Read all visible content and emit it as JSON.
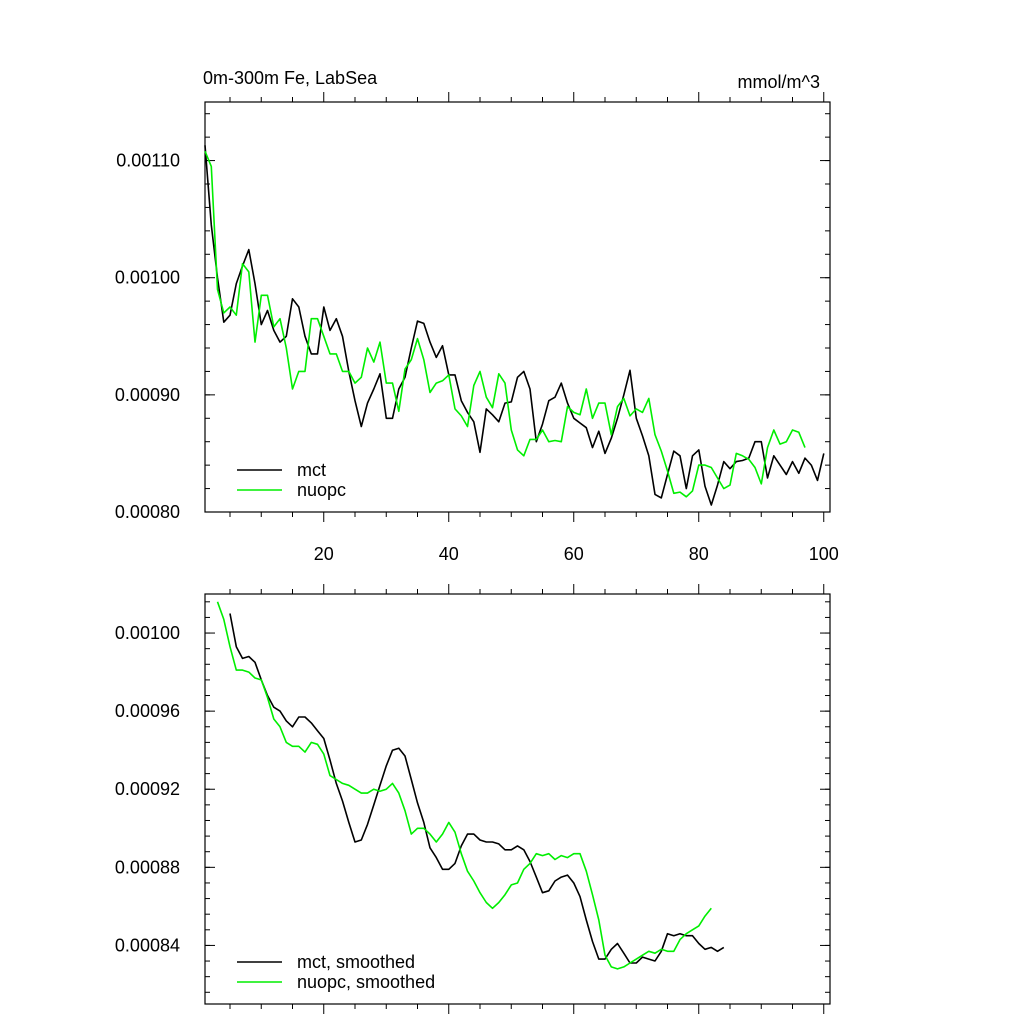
{
  "chart_data": [
    {
      "type": "line",
      "title": "0m-300m Fe, LabSea",
      "units": "mmol/m^3",
      "xlim": [
        1,
        101
      ],
      "ylim": [
        0.0008,
        0.00115
      ],
      "yticks": [
        0.0008,
        0.0009,
        0.001,
        0.0011
      ],
      "ytick_labels": [
        "0.00080",
        "0.00090",
        "0.00100",
        "0.00110"
      ],
      "xticks": [
        20,
        40,
        60,
        80,
        100
      ],
      "xtick_labels": [
        "20",
        "40",
        "60",
        "80",
        "100"
      ],
      "legend_position": "bottom-left",
      "series": [
        {
          "name": "mct",
          "color": "#000000",
          "values": [
            0.001113,
            0.001045,
            0.001,
            0.000962,
            0.000968,
            0.000995,
            0.00101,
            0.001024,
            0.000995,
            0.00096,
            0.000972,
            0.000955,
            0.000945,
            0.00095,
            0.000982,
            0.000975,
            0.00095,
            0.000935,
            0.000935,
            0.000975,
            0.000955,
            0.000965,
            0.00095,
            0.00092,
            0.000895,
            0.000873,
            0.000893,
            0.000905,
            0.000918,
            0.00088,
            0.00088,
            0.000905,
            0.000915,
            0.00094,
            0.000963,
            0.000961,
            0.000945,
            0.000932,
            0.000942,
            0.000917,
            0.000917,
            0.000895,
            0.000885,
            0.000877,
            0.000851,
            0.000888,
            0.000883,
            0.000877,
            0.000893,
            0.000894,
            0.000915,
            0.00092,
            0.000905,
            0.00086,
            0.000875,
            0.000895,
            0.000898,
            0.00091,
            0.000893,
            0.00088,
            0.000876,
            0.000872,
            0.000855,
            0.000869,
            0.00085,
            0.000863,
            0.00088,
            0.0009,
            0.000921,
            0.00088,
            0.000865,
            0.000848,
            0.000815,
            0.000812,
            0.000832,
            0.000852,
            0.000848,
            0.00082,
            0.000848,
            0.000853,
            0.000822,
            0.000806,
            0.000823,
            0.000843,
            0.000837,
            0.000843,
            0.000844,
            0.000846,
            0.00086,
            0.00086,
            0.000829,
            0.000848,
            0.00084,
            0.000832,
            0.000843,
            0.000833,
            0.000846,
            0.00084,
            0.000827,
            0.00085
          ]
        },
        {
          "name": "nuopc",
          "color": "#00ee00",
          "values": [
            0.001108,
            0.001095,
            0.00099,
            0.00097,
            0.000975,
            0.000968,
            0.001012,
            0.001005,
            0.000945,
            0.000985,
            0.000985,
            0.000958,
            0.000965,
            0.00094,
            0.000905,
            0.00092,
            0.00092,
            0.000965,
            0.000965,
            0.00095,
            0.000935,
            0.000935,
            0.00092,
            0.00092,
            0.00091,
            0.000915,
            0.00094,
            0.000928,
            0.000945,
            0.00091,
            0.00091,
            0.000886,
            0.000922,
            0.00093,
            0.000948,
            0.00093,
            0.000902,
            0.00091,
            0.000912,
            0.000917,
            0.000888,
            0.000882,
            0.000873,
            0.000908,
            0.00092,
            0.000898,
            0.000889,
            0.000918,
            0.00091,
            0.00087,
            0.000853,
            0.000848,
            0.000862,
            0.000862,
            0.00087,
            0.00086,
            0.000861,
            0.00086,
            0.00089,
            0.000885,
            0.000883,
            0.000905,
            0.00088,
            0.000893,
            0.000893,
            0.000866,
            0.00089,
            0.000897,
            0.000882,
            0.000888,
            0.000885,
            0.000897,
            0.000866,
            0.000852,
            0.000835,
            0.000816,
            0.000817,
            0.000813,
            0.000818,
            0.00084,
            0.00084,
            0.000838,
            0.000829,
            0.00082,
            0.000823,
            0.00085,
            0.000848,
            0.000845,
            0.000838,
            0.000824,
            0.000855,
            0.00087,
            0.000858,
            0.00086,
            0.00087,
            0.000868,
            0.000855
          ]
        }
      ]
    },
    {
      "type": "line",
      "title": "",
      "xlim": [
        1,
        101
      ],
      "ylim": [
        0.00081,
        0.00102
      ],
      "yticks": [
        0.00084,
        0.00088,
        0.00092,
        0.00096,
        0.001
      ],
      "ytick_labels": [
        "0.00084",
        "0.00088",
        "0.00092",
        "0.00096",
        "0.00100"
      ],
      "xticks": [
        20,
        40,
        60,
        80,
        100
      ],
      "legend_position": "bottom-left",
      "series": [
        {
          "name": "mct, smoothed",
          "color": "#000000",
          "x_start": 5,
          "values": [
            0.00101,
            0.000993,
            0.000987,
            0.000988,
            0.000985,
            0.000976,
            0.000968,
            0.000962,
            0.00096,
            0.000955,
            0.000952,
            0.000957,
            0.000957,
            0.000954,
            0.00095,
            0.000946,
            0.000935,
            0.000923,
            0.000914,
            0.000903,
            0.000893,
            0.000894,
            0.000902,
            0.000912,
            0.000922,
            0.000932,
            0.00094,
            0.000941,
            0.000937,
            0.000925,
            0.000913,
            0.000903,
            0.00089,
            0.000885,
            0.000879,
            0.000879,
            0.000882,
            0.000891,
            0.000897,
            0.000897,
            0.000894,
            0.000893,
            0.000893,
            0.000892,
            0.000889,
            0.000889,
            0.000891,
            0.000889,
            0.000883,
            0.000875,
            0.000867,
            0.000868,
            0.000873,
            0.000875,
            0.000876,
            0.000872,
            0.000865,
            0.000853,
            0.000842,
            0.000833,
            0.000833,
            0.000838,
            0.000841,
            0.000836,
            0.000831,
            0.000831,
            0.000834,
            0.000833,
            0.000832,
            0.000837,
            0.000846,
            0.000845,
            0.000846,
            0.000845,
            0.000845,
            0.000841,
            0.000838,
            0.000839,
            0.000837,
            0.000839
          ]
        },
        {
          "name": "nuopc, smoothed",
          "color": "#00ee00",
          "x_start": 3,
          "values": [
            0.001016,
            0.001007,
            0.000993,
            0.000981,
            0.000981,
            0.00098,
            0.000977,
            0.000976,
            0.000967,
            0.000956,
            0.000952,
            0.000944,
            0.000942,
            0.000942,
            0.000939,
            0.000944,
            0.000943,
            0.000938,
            0.000927,
            0.000925,
            0.000923,
            0.000922,
            0.00092,
            0.000918,
            0.000918,
            0.00092,
            0.000919,
            0.00092,
            0.000923,
            0.000918,
            0.000909,
            0.000897,
            0.0009,
            0.0009,
            0.000897,
            0.000893,
            0.000897,
            0.000903,
            0.000898,
            0.000887,
            0.000878,
            0.000873,
            0.000867,
            0.000862,
            0.000859,
            0.000862,
            0.000866,
            0.000871,
            0.000872,
            0.000879,
            0.000882,
            0.000887,
            0.000886,
            0.000887,
            0.000884,
            0.000886,
            0.000885,
            0.000887,
            0.000887,
            0.000878,
            0.000866,
            0.000853,
            0.000835,
            0.000829,
            0.000828,
            0.000829,
            0.000831,
            0.000833,
            0.000835,
            0.000837,
            0.000836,
            0.000838,
            0.000837,
            0.000837,
            0.000843,
            0.000846,
            0.000848,
            0.00085,
            0.000855,
            0.000859
          ]
        }
      ]
    }
  ]
}
